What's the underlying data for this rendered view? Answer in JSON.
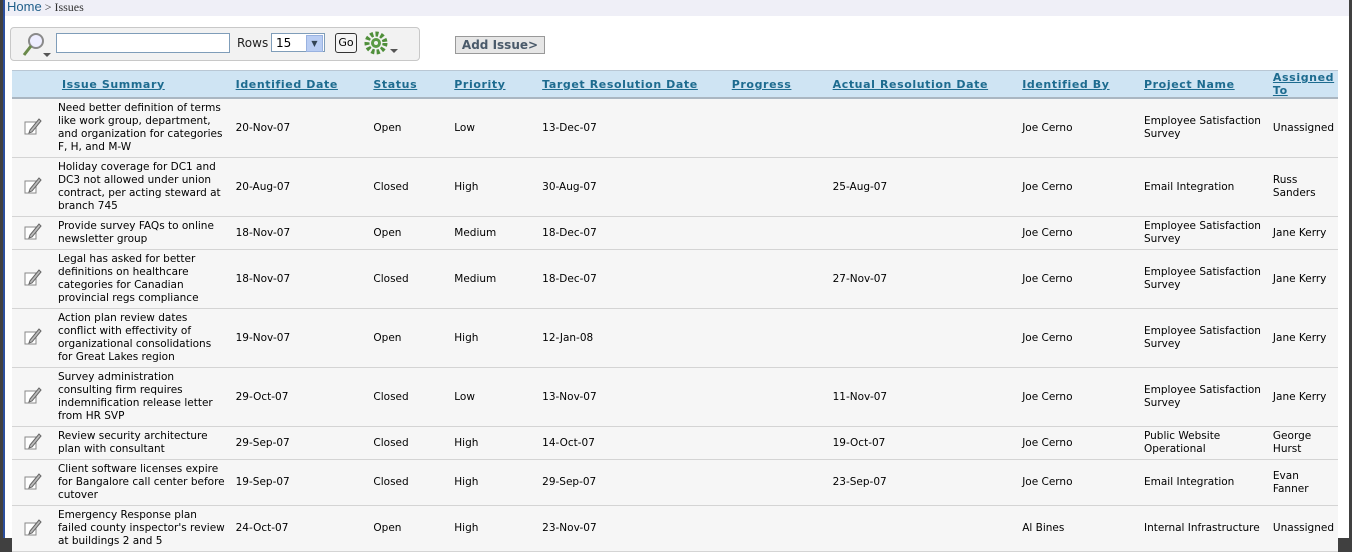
{
  "breadcrumb": {
    "home": "Home",
    "separator": " > ",
    "current": "Issues"
  },
  "toolbar": {
    "search_value": "",
    "rows_label": "Rows",
    "rows_value": "15",
    "go_label": "Go",
    "add_issue_label": "Add Issue>"
  },
  "columns": [
    "Issue Summary",
    "Identified Date",
    "Status",
    "Priority",
    "Target Resolution Date",
    "Progress",
    "Actual Resolution Date",
    "Identified By",
    "Project Name",
    "Assigned To"
  ],
  "rows": [
    [
      "Need better definition of terms like work group, department, and organization for categories F, H, and M-W",
      "20-Nov-07",
      "Open",
      "Low",
      "13-Dec-07",
      "",
      "",
      "Joe Cerno",
      "Employee Satisfaction Survey",
      "Unassigned"
    ],
    [
      "Holiday coverage for DC1 and DC3 not allowed under union contract, per acting steward at branch 745",
      "20-Aug-07",
      "Closed",
      "High",
      "30-Aug-07",
      "",
      "25-Aug-07",
      "Joe Cerno",
      "Email Integration",
      "Russ Sanders"
    ],
    [
      "Provide survey FAQs to online newsletter group",
      "18-Nov-07",
      "Open",
      "Medium",
      "18-Dec-07",
      "",
      "",
      "Joe Cerno",
      "Employee Satisfaction Survey",
      "Jane Kerry"
    ],
    [
      "Legal has asked for better definitions on healthcare categories for Canadian provincial regs compliance",
      "18-Nov-07",
      "Closed",
      "Medium",
      "18-Dec-07",
      "",
      "27-Nov-07",
      "Joe Cerno",
      "Employee Satisfaction Survey",
      "Jane Kerry"
    ],
    [
      "Action plan review dates conflict with effectivity of organizational consolidations for Great Lakes region",
      "19-Nov-07",
      "Open",
      "High",
      "12-Jan-08",
      "",
      "",
      "Joe Cerno",
      "Employee Satisfaction Survey",
      "Jane Kerry"
    ],
    [
      "Survey administration consulting firm requires indemnification release letter from HR SVP",
      "29-Oct-07",
      "Closed",
      "Low",
      "13-Nov-07",
      "",
      "11-Nov-07",
      "Joe Cerno",
      "Employee Satisfaction Survey",
      "Jane Kerry"
    ],
    [
      "Review security architecture plan with consultant",
      "29-Sep-07",
      "Closed",
      "High",
      "14-Oct-07",
      "",
      "19-Oct-07",
      "Joe Cerno",
      "Public Website Operational",
      "George Hurst"
    ],
    [
      "Client software licenses expire for Bangalore call center before cutover",
      "19-Sep-07",
      "Closed",
      "High",
      "29-Sep-07",
      "",
      "23-Sep-07",
      "Joe Cerno",
      "Email Integration",
      "Evan Fanner"
    ],
    [
      "Emergency Response plan failed county inspector's review at buildings 2 and 5",
      "24-Oct-07",
      "Open",
      "High",
      "23-Nov-07",
      "",
      "",
      "Al Bines",
      "Internal Infrastructure",
      "Unassigned"
    ]
  ],
  "icons": {
    "search": "magnifier-icon",
    "settings": "gear-icon",
    "edit": "pencil-edit-icon"
  }
}
